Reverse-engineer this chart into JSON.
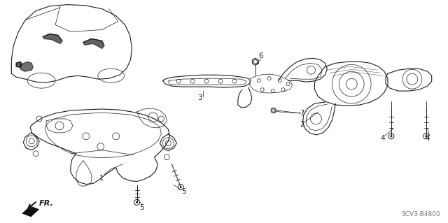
{
  "bg_color": "#ffffff",
  "line_color": "#1a1a1a",
  "figure_width": 6.4,
  "figure_height": 3.19,
  "dpi": 100,
  "watermark": "SCV3-B4800",
  "label_fontsize": 7.5,
  "fr_fontsize": 8
}
